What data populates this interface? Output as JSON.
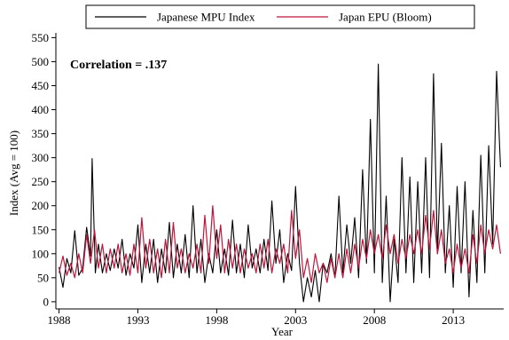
{
  "chart_data": {
    "type": "line",
    "title": "",
    "xlabel": "Year",
    "ylabel": "Index (Avg = 100)",
    "xlim": [
      1987.8,
      2016.2
    ],
    "ylim": [
      -15,
      560
    ],
    "x_ticks": [
      1988,
      1993,
      1998,
      2003,
      2008,
      2013
    ],
    "y_ticks": [
      0,
      50,
      100,
      150,
      200,
      250,
      300,
      350,
      400,
      450,
      500,
      550
    ],
    "grid": false,
    "legend_position": "top",
    "annotation": "Correlation = .137",
    "series": [
      {
        "name": "Japanese MPU Index",
        "color": "#000000",
        "points": [
          [
            1988.0,
            72
          ],
          [
            1988.25,
            30
          ],
          [
            1988.5,
            90
          ],
          [
            1988.75,
            60
          ],
          [
            1989.0,
            148
          ],
          [
            1989.25,
            55
          ],
          [
            1989.5,
            70
          ],
          [
            1989.75,
            155
          ],
          [
            1990.0,
            95
          ],
          [
            1990.1,
            298
          ],
          [
            1990.3,
            60
          ],
          [
            1990.5,
            120
          ],
          [
            1990.75,
            60
          ],
          [
            1991.0,
            100
          ],
          [
            1991.25,
            65
          ],
          [
            1991.5,
            110
          ],
          [
            1991.75,
            70
          ],
          [
            1992.0,
            130
          ],
          [
            1992.25,
            55
          ],
          [
            1992.5,
            100
          ],
          [
            1992.75,
            70
          ],
          [
            1993.0,
            160
          ],
          [
            1993.25,
            40
          ],
          [
            1993.5,
            120
          ],
          [
            1993.75,
            60
          ],
          [
            1994.0,
            130
          ],
          [
            1994.25,
            40
          ],
          [
            1994.5,
            110
          ],
          [
            1994.75,
            60
          ],
          [
            1995.0,
            165
          ],
          [
            1995.25,
            50
          ],
          [
            1995.5,
            120
          ],
          [
            1995.75,
            60
          ],
          [
            1996.0,
            140
          ],
          [
            1996.25,
            50
          ],
          [
            1996.5,
            200
          ],
          [
            1996.75,
            60
          ],
          [
            1997.0,
            130
          ],
          [
            1997.25,
            40
          ],
          [
            1997.5,
            100
          ],
          [
            1997.75,
            60
          ],
          [
            1998.0,
            150
          ],
          [
            1998.25,
            60
          ],
          [
            1998.5,
            110
          ],
          [
            1998.75,
            55
          ],
          [
            1999.0,
            170
          ],
          [
            1999.25,
            60
          ],
          [
            1999.5,
            120
          ],
          [
            1999.75,
            50
          ],
          [
            2000.0,
            160
          ],
          [
            2000.25,
            70
          ],
          [
            2000.5,
            110
          ],
          [
            2000.75,
            60
          ],
          [
            2001.0,
            130
          ],
          [
            2001.25,
            65
          ],
          [
            2001.5,
            210
          ],
          [
            2001.75,
            80
          ],
          [
            2002.0,
            150
          ],
          [
            2002.25,
            40
          ],
          [
            2002.5,
            100
          ],
          [
            2002.75,
            65
          ],
          [
            2003.0,
            240
          ],
          [
            2003.25,
            80
          ],
          [
            2003.5,
            0
          ],
          [
            2003.75,
            50
          ],
          [
            2004.0,
            10
          ],
          [
            2004.25,
            65
          ],
          [
            2004.5,
            0
          ],
          [
            2004.75,
            80
          ],
          [
            2005.0,
            60
          ],
          [
            2005.25,
            100
          ],
          [
            2005.5,
            50
          ],
          [
            2005.75,
            220
          ],
          [
            2006.0,
            60
          ],
          [
            2006.25,
            160
          ],
          [
            2006.5,
            80
          ],
          [
            2006.75,
            175
          ],
          [
            2007.0,
            50
          ],
          [
            2007.25,
            275
          ],
          [
            2007.5,
            80
          ],
          [
            2007.75,
            380
          ],
          [
            2008.0,
            60
          ],
          [
            2008.25,
            495
          ],
          [
            2008.5,
            40
          ],
          [
            2008.75,
            220
          ],
          [
            2009.0,
            0
          ],
          [
            2009.25,
            130
          ],
          [
            2009.5,
            40
          ],
          [
            2009.75,
            300
          ],
          [
            2010.0,
            60
          ],
          [
            2010.25,
            260
          ],
          [
            2010.5,
            40
          ],
          [
            2010.75,
            250
          ],
          [
            2011.0,
            60
          ],
          [
            2011.25,
            300
          ],
          [
            2011.5,
            50
          ],
          [
            2011.75,
            475
          ],
          [
            2012.0,
            100
          ],
          [
            2012.25,
            330
          ],
          [
            2012.5,
            60
          ],
          [
            2012.75,
            200
          ],
          [
            2013.0,
            30
          ],
          [
            2013.25,
            240
          ],
          [
            2013.5,
            60
          ],
          [
            2013.75,
            250
          ],
          [
            2014.0,
            10
          ],
          [
            2014.25,
            190
          ],
          [
            2014.5,
            40
          ],
          [
            2014.75,
            305
          ],
          [
            2015.0,
            60
          ],
          [
            2015.25,
            325
          ],
          [
            2015.5,
            120
          ],
          [
            2015.75,
            480
          ],
          [
            2016.0,
            280
          ]
        ]
      },
      {
        "name": "Japan EPU (Bloom)",
        "color": "#c0143c",
        "points": [
          [
            1988.0,
            60
          ],
          [
            1988.25,
            95
          ],
          [
            1988.5,
            55
          ],
          [
            1988.75,
            80
          ],
          [
            1989.0,
            50
          ],
          [
            1989.25,
            100
          ],
          [
            1989.5,
            60
          ],
          [
            1989.75,
            140
          ],
          [
            1990.0,
            80
          ],
          [
            1990.25,
            150
          ],
          [
            1990.5,
            70
          ],
          [
            1990.75,
            120
          ],
          [
            1991.0,
            60
          ],
          [
            1991.25,
            110
          ],
          [
            1991.5,
            70
          ],
          [
            1991.75,
            120
          ],
          [
            1992.0,
            60
          ],
          [
            1992.25,
            100
          ],
          [
            1992.5,
            55
          ],
          [
            1992.75,
            120
          ],
          [
            1993.0,
            60
          ],
          [
            1993.25,
            175
          ],
          [
            1993.5,
            70
          ],
          [
            1993.75,
            130
          ],
          [
            1994.0,
            60
          ],
          [
            1994.25,
            110
          ],
          [
            1994.5,
            50
          ],
          [
            1994.75,
            130
          ],
          [
            1995.0,
            60
          ],
          [
            1995.25,
            165
          ],
          [
            1995.5,
            70
          ],
          [
            1995.75,
            110
          ],
          [
            1996.0,
            60
          ],
          [
            1996.25,
            100
          ],
          [
            1996.5,
            70
          ],
          [
            1996.75,
            120
          ],
          [
            1997.0,
            60
          ],
          [
            1997.25,
            180
          ],
          [
            1997.5,
            80
          ],
          [
            1997.75,
            200
          ],
          [
            1998.0,
            90
          ],
          [
            1998.25,
            160
          ],
          [
            1998.5,
            60
          ],
          [
            1998.75,
            130
          ],
          [
            1999.0,
            70
          ],
          [
            1999.25,
            120
          ],
          [
            1999.5,
            60
          ],
          [
            1999.75,
            110
          ],
          [
            2000.0,
            70
          ],
          [
            2000.25,
            100
          ],
          [
            2000.5,
            60
          ],
          [
            2000.75,
            120
          ],
          [
            2001.0,
            70
          ],
          [
            2001.25,
            130
          ],
          [
            2001.5,
            60
          ],
          [
            2001.75,
            110
          ],
          [
            2002.0,
            80
          ],
          [
            2002.25,
            120
          ],
          [
            2002.5,
            60
          ],
          [
            2002.75,
            190
          ],
          [
            2003.0,
            90
          ],
          [
            2003.25,
            150
          ],
          [
            2003.5,
            50
          ],
          [
            2003.75,
            90
          ],
          [
            2004.0,
            40
          ],
          [
            2004.25,
            100
          ],
          [
            2004.5,
            60
          ],
          [
            2004.75,
            80
          ],
          [
            2005.0,
            40
          ],
          [
            2005.25,
            90
          ],
          [
            2005.5,
            50
          ],
          [
            2005.75,
            100
          ],
          [
            2006.0,
            50
          ],
          [
            2006.25,
            110
          ],
          [
            2006.5,
            60
          ],
          [
            2006.75,
            120
          ],
          [
            2007.0,
            70
          ],
          [
            2007.25,
            130
          ],
          [
            2007.5,
            90
          ],
          [
            2007.75,
            150
          ],
          [
            2008.0,
            100
          ],
          [
            2008.25,
            140
          ],
          [
            2008.5,
            90
          ],
          [
            2008.75,
            160
          ],
          [
            2009.0,
            100
          ],
          [
            2009.25,
            140
          ],
          [
            2009.5,
            80
          ],
          [
            2009.75,
            130
          ],
          [
            2010.0,
            90
          ],
          [
            2010.25,
            140
          ],
          [
            2010.5,
            100
          ],
          [
            2010.75,
            150
          ],
          [
            2011.0,
            100
          ],
          [
            2011.25,
            180
          ],
          [
            2011.5,
            110
          ],
          [
            2011.75,
            190
          ],
          [
            2012.0,
            100
          ],
          [
            2012.25,
            150
          ],
          [
            2012.5,
            80
          ],
          [
            2012.75,
            110
          ],
          [
            2013.0,
            60
          ],
          [
            2013.25,
            120
          ],
          [
            2013.5,
            70
          ],
          [
            2013.75,
            110
          ],
          [
            2014.0,
            60
          ],
          [
            2014.25,
            140
          ],
          [
            2014.5,
            80
          ],
          [
            2014.75,
            160
          ],
          [
            2015.0,
            100
          ],
          [
            2015.25,
            150
          ],
          [
            2015.5,
            110
          ],
          [
            2015.75,
            160
          ],
          [
            2016.0,
            100
          ]
        ]
      }
    ]
  }
}
